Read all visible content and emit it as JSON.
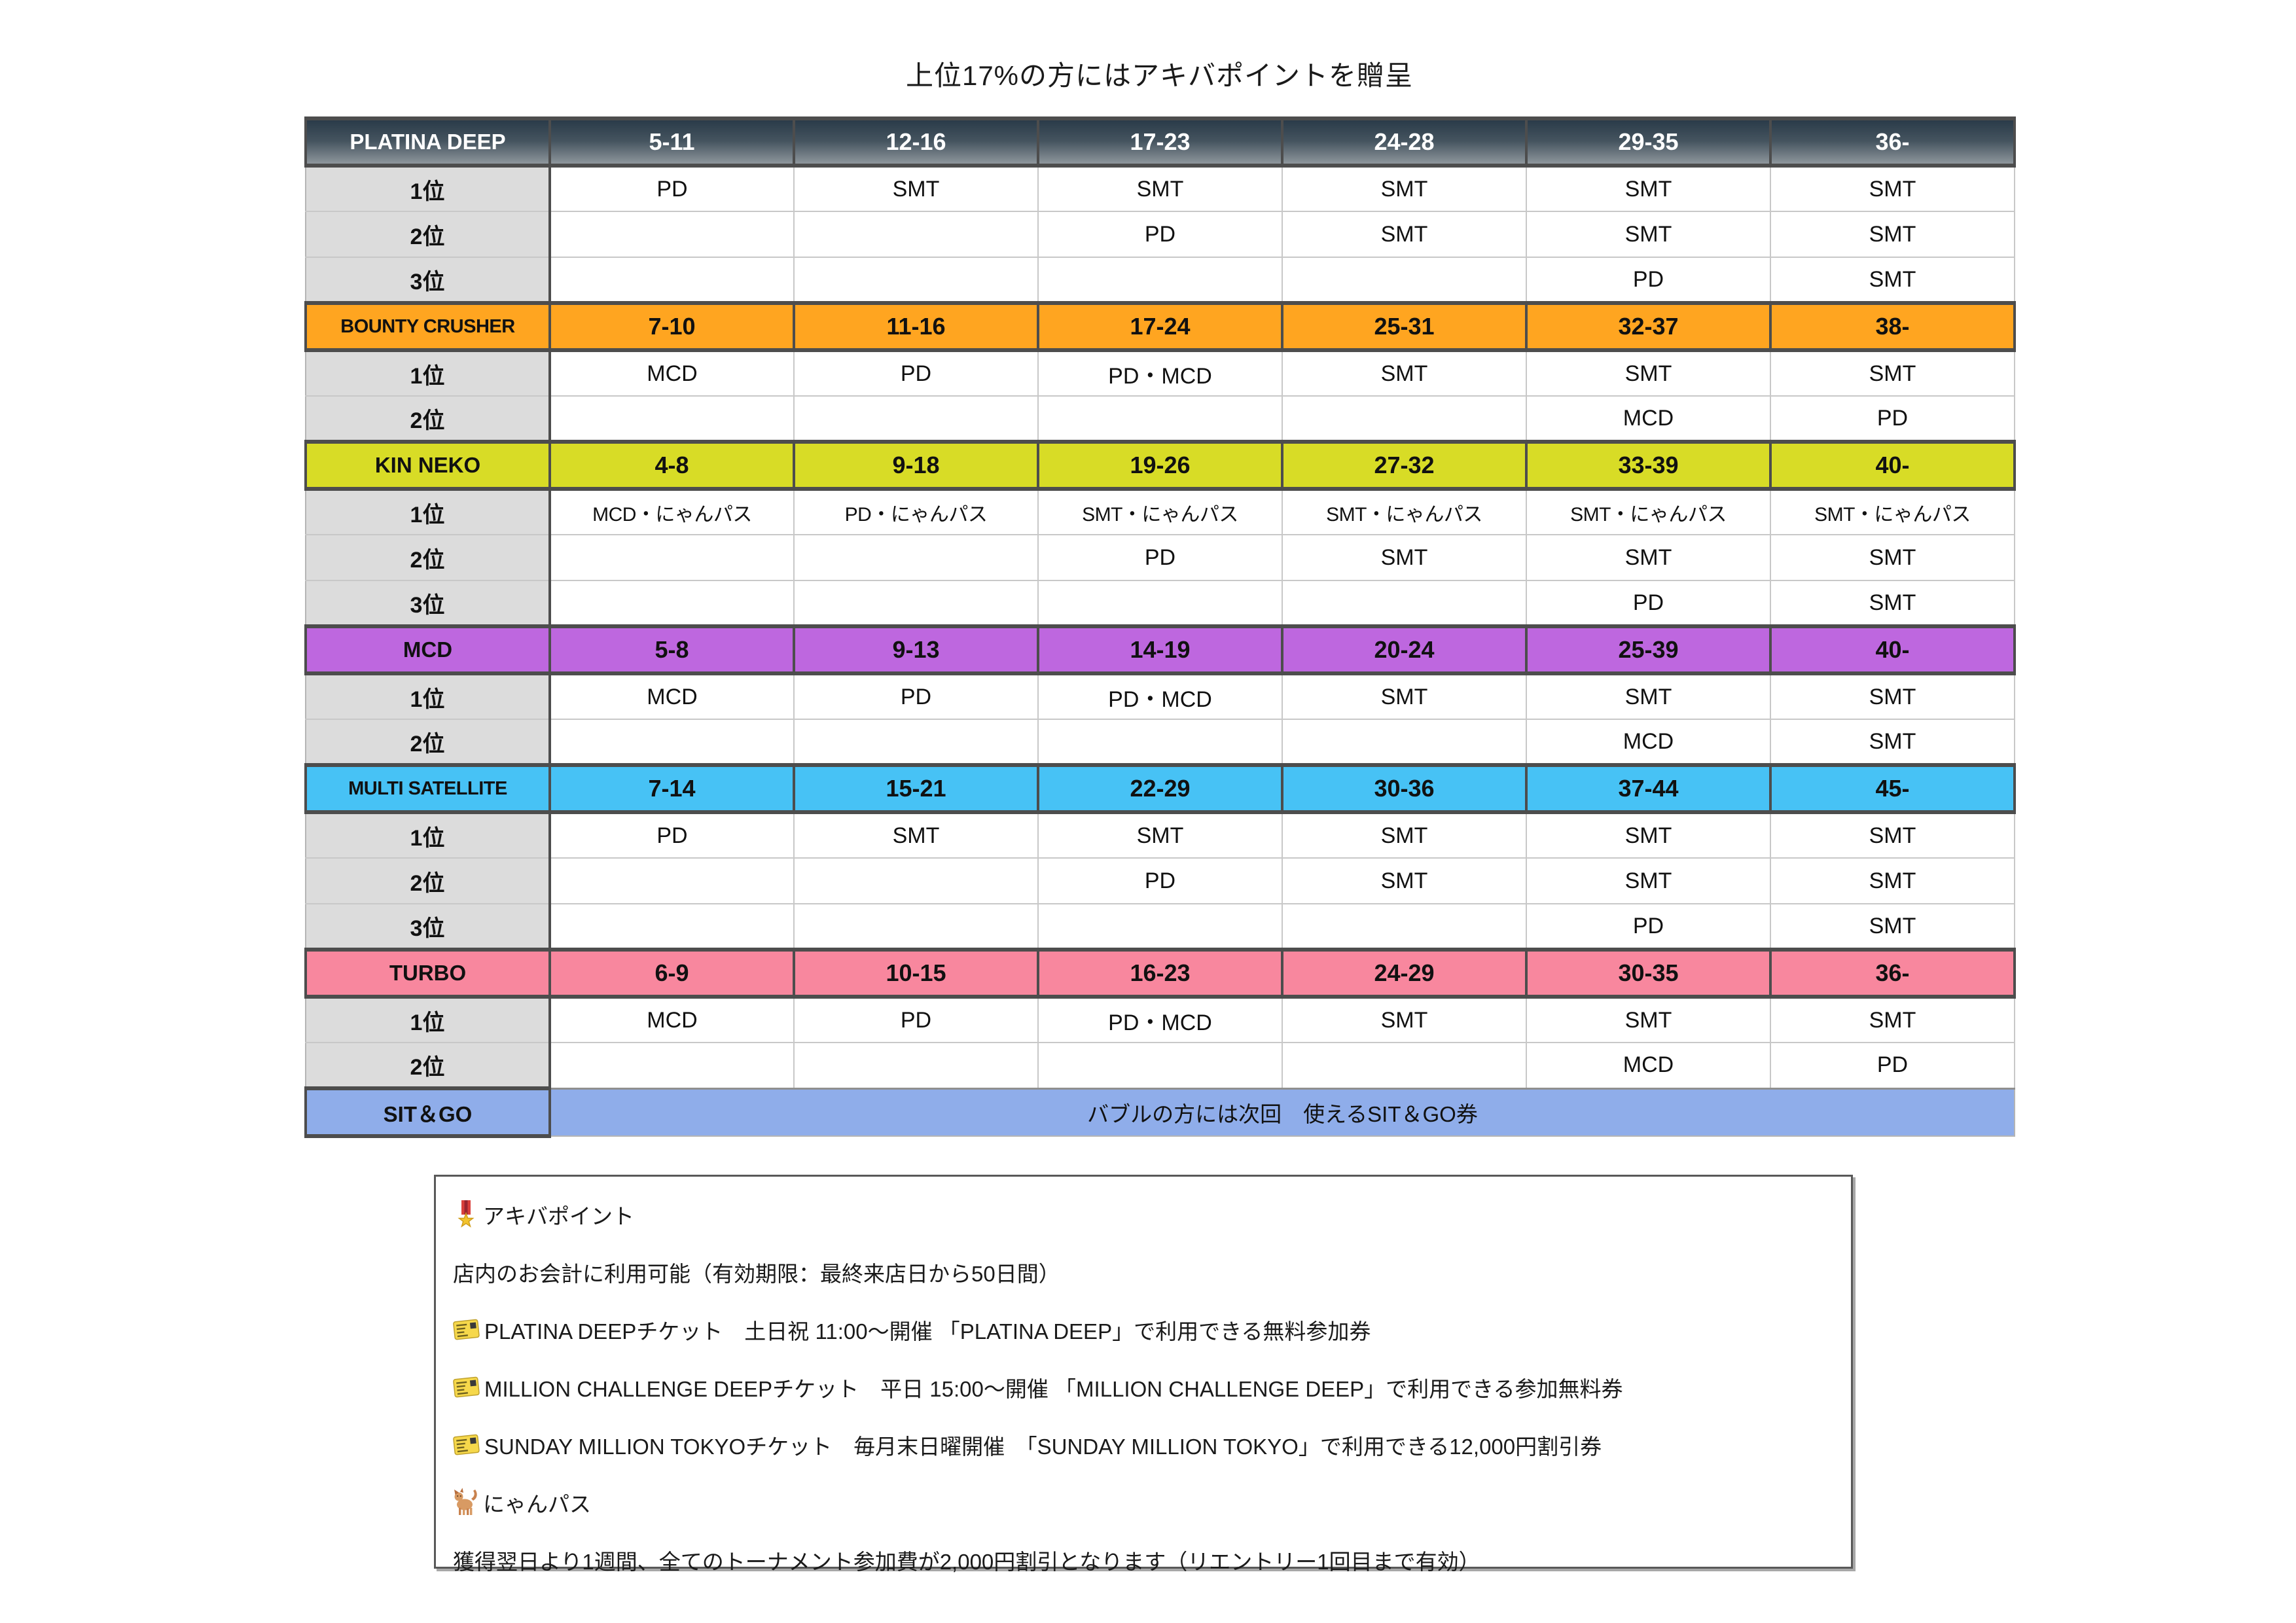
{
  "title": "上位17%の方にはアキバポイントを贈呈",
  "table": {
    "sections": [
      {
        "name": "PLATINA DEEP",
        "style": "platina",
        "color": "#45545F",
        "ranges": [
          "5-11",
          "12-16",
          "17-23",
          "24-28",
          "29-35",
          "36-"
        ],
        "rows": [
          {
            "rank": "1位",
            "cells": [
              "PD",
              "SMT",
              "SMT",
              "SMT",
              "SMT",
              "SMT"
            ]
          },
          {
            "rank": "2位",
            "cells": [
              "",
              "",
              "PD",
              "SMT",
              "SMT",
              "SMT"
            ]
          },
          {
            "rank": "3位",
            "cells": [
              "",
              "",
              "",
              "",
              "PD",
              "SMT"
            ]
          }
        ]
      },
      {
        "name": "BOUNTY CRUSHER",
        "style": "flat",
        "color": "#FFA520",
        "ranges": [
          "7-10",
          "11-16",
          "17-24",
          "25-31",
          "32-37",
          "38-"
        ],
        "rows": [
          {
            "rank": "1位",
            "cells": [
              "MCD",
              "PD",
              "PD・MCD",
              "SMT",
              "SMT",
              "SMT"
            ]
          },
          {
            "rank": "2位",
            "cells": [
              "",
              "",
              "",
              "",
              "MCD",
              "PD"
            ]
          }
        ]
      },
      {
        "name": "KIN NEKO",
        "style": "flat",
        "color": "#D8DC26",
        "ranges": [
          "4-8",
          "9-18",
          "19-26",
          "27-32",
          "33-39",
          "40-"
        ],
        "rows": [
          {
            "rank": "1位",
            "cells": [
              "MCD・にゃんパス",
              "PD・にゃんパス",
              "SMT・にゃんパス",
              "SMT・にゃんパス",
              "SMT・にゃんパス",
              "SMT・にゃんパス"
            ]
          },
          {
            "rank": "2位",
            "cells": [
              "",
              "",
              "PD",
              "SMT",
              "SMT",
              "SMT"
            ]
          },
          {
            "rank": "3位",
            "cells": [
              "",
              "",
              "",
              "",
              "PD",
              "SMT"
            ]
          }
        ]
      },
      {
        "name": "MCD",
        "style": "flat",
        "color": "#BE67DF",
        "ranges": [
          "5-8",
          "9-13",
          "14-19",
          "20-24",
          "25-39",
          "40-"
        ],
        "rows": [
          {
            "rank": "1位",
            "cells": [
              "MCD",
              "PD",
              "PD・MCD",
              "SMT",
              "SMT",
              "SMT"
            ]
          },
          {
            "rank": "2位",
            "cells": [
              "",
              "",
              "",
              "",
              "MCD",
              "SMT"
            ]
          }
        ]
      },
      {
        "name": "MULTI SATELLITE",
        "style": "flat",
        "color": "#47C2F5",
        "ranges": [
          "7-14",
          "15-21",
          "22-29",
          "30-36",
          "37-44",
          "45-"
        ],
        "rows": [
          {
            "rank": "1位",
            "cells": [
              "PD",
              "SMT",
              "SMT",
              "SMT",
              "SMT",
              "SMT"
            ]
          },
          {
            "rank": "2位",
            "cells": [
              "",
              "",
              "PD",
              "SMT",
              "SMT",
              "SMT"
            ]
          },
          {
            "rank": "3位",
            "cells": [
              "",
              "",
              "",
              "",
              "PD",
              "SMT"
            ]
          }
        ]
      },
      {
        "name": "TURBO",
        "style": "flat",
        "color": "#F8879E",
        "ranges": [
          "6-9",
          "10-15",
          "16-23",
          "24-29",
          "30-35",
          "36-"
        ],
        "rows": [
          {
            "rank": "1位",
            "cells": [
              "MCD",
              "PD",
              "PD・MCD",
              "SMT",
              "SMT",
              "SMT"
            ]
          },
          {
            "rank": "2位",
            "cells": [
              "",
              "",
              "",
              "",
              "MCD",
              "PD"
            ]
          }
        ]
      }
    ],
    "sitgo": {
      "name": "SIT＆GO",
      "color": "#8FADEA",
      "text": "バブルの方には次回　使えるSIT＆GO券"
    }
  },
  "legend": {
    "items": [
      {
        "icon": "medal-icon",
        "text": "アキバポイント"
      },
      {
        "icon": "",
        "text": "店内のお会計に利用可能（有効期限：最終来店日から50日間）"
      },
      {
        "icon": "ticket-icon",
        "text": "PLATINA DEEPチケット　土日祝 11:00〜開催 「PLATINA DEEP」で利用できる無料参加券"
      },
      {
        "icon": "ticket-icon",
        "text": "MILLION CHALLENGE DEEPチケット　平日 15:00〜開催 「MILLION CHALLENGE DEEP」で利用できる参加無料券"
      },
      {
        "icon": "ticket-icon",
        "text": "SUNDAY MILLION TOKYOチケット　毎月末日曜開催　「SUNDAY MILLION TOKYO」で利用できる12,000円割引券"
      },
      {
        "icon": "cat-icon",
        "text": "にゃんパス"
      },
      {
        "icon": "",
        "text": "獲得翌日より1週間、全てのトーナメント参加費が2,000円割引となります（リエントリー1回目まで有効）"
      }
    ]
  },
  "colors": {
    "header_border": "#4D4D4D",
    "grid_line": "#C8C8C8",
    "rank_cell_bg": "#DCDCDC",
    "platina_gradient_top": "#2A3B49",
    "platina_gradient_bottom": "#8E969C"
  }
}
